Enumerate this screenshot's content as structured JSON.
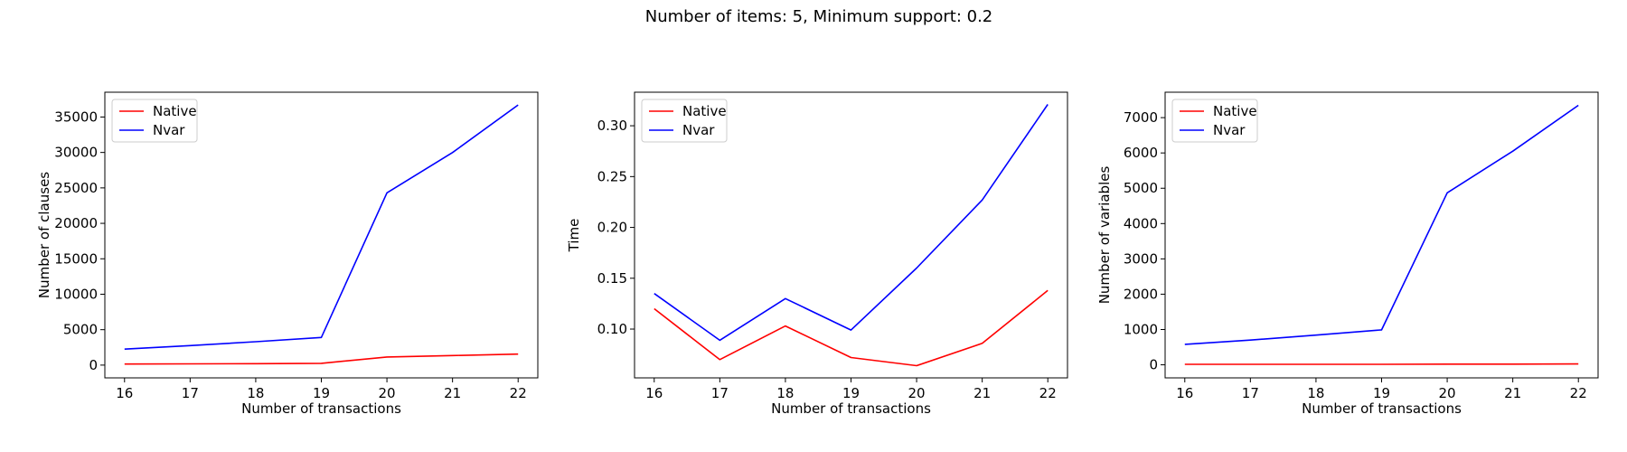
{
  "suptitle": "Number of items: 5, Minimum support: 0.2",
  "colors": {
    "native": "#ff0000",
    "nvar": "#0000ff"
  },
  "chart_data": [
    {
      "type": "line",
      "xlabel": "Number of transactions",
      "ylabel": "Number of clauses",
      "x": [
        16,
        17,
        18,
        19,
        20,
        21,
        22
      ],
      "xticks": [
        "16",
        "17",
        "18",
        "19",
        "20",
        "21",
        "22"
      ],
      "ylim": [
        -1800,
        38500
      ],
      "yticks": [
        0,
        5000,
        10000,
        15000,
        20000,
        25000,
        30000,
        35000
      ],
      "ytick_labels": [
        "0",
        "5000",
        "10000",
        "15000",
        "20000",
        "25000",
        "30000",
        "35000"
      ],
      "legend": "top-left",
      "series": [
        {
          "name": "Native",
          "values": [
            150,
            180,
            200,
            250,
            1150,
            1350,
            1550
          ]
        },
        {
          "name": "Nvar",
          "values": [
            2250,
            2750,
            3300,
            3900,
            24300,
            30000,
            36700
          ]
        }
      ]
    },
    {
      "type": "line",
      "xlabel": "Number of transactions",
      "ylabel": "Time",
      "x": [
        16,
        17,
        18,
        19,
        20,
        21,
        22
      ],
      "xticks": [
        "16",
        "17",
        "18",
        "19",
        "20",
        "21",
        "22"
      ],
      "ylim": [
        0.052,
        0.333
      ],
      "yticks": [
        0.1,
        0.15,
        0.2,
        0.25,
        0.3
      ],
      "ytick_labels": [
        "0.10",
        "0.15",
        "0.20",
        "0.25",
        "0.30"
      ],
      "legend": "top-left",
      "series": [
        {
          "name": "Native",
          "values": [
            0.12,
            0.07,
            0.103,
            0.072,
            0.064,
            0.086,
            0.138
          ]
        },
        {
          "name": "Nvar",
          "values": [
            0.135,
            0.089,
            0.13,
            0.099,
            0.16,
            0.227,
            0.321
          ]
        }
      ]
    },
    {
      "type": "line",
      "xlabel": "Number of transactions",
      "ylabel": "Number of variables",
      "x": [
        16,
        17,
        18,
        19,
        20,
        21,
        22
      ],
      "xticks": [
        "16",
        "17",
        "18",
        "19",
        "20",
        "21",
        "22"
      ],
      "ylim": [
        -370,
        7720
      ],
      "yticks": [
        0,
        1000,
        2000,
        3000,
        4000,
        5000,
        6000,
        7000
      ],
      "ytick_labels": [
        "0",
        "1000",
        "2000",
        "3000",
        "4000",
        "5000",
        "6000",
        "7000"
      ],
      "legend": "top-left",
      "series": [
        {
          "name": "Native",
          "values": [
            15,
            15,
            15,
            15,
            20,
            20,
            25
          ]
        },
        {
          "name": "Nvar",
          "values": [
            580,
            700,
            840,
            990,
            4870,
            6050,
            7350
          ]
        }
      ]
    }
  ]
}
